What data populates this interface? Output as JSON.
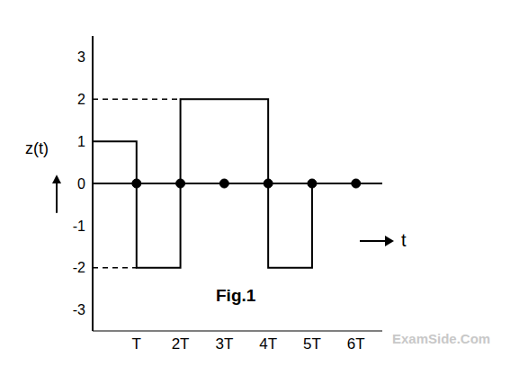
{
  "chart_data": {
    "type": "line",
    "title": "Fig.1",
    "y_label": "z(t)",
    "x_label": "t",
    "line_style": "step",
    "x": [
      0,
      1,
      2,
      4,
      5,
      6.5
    ],
    "values": [
      1,
      -2,
      2,
      -2,
      0,
      0
    ],
    "color": "#000000",
    "xlim": [
      0,
      6.6
    ],
    "ylim": [
      -3.5,
      3.5
    ],
    "xticks": [
      {
        "value": 1,
        "label": "T"
      },
      {
        "value": 2,
        "label": "2T"
      },
      {
        "value": 3,
        "label": "3T"
      },
      {
        "value": 4,
        "label": "4T"
      },
      {
        "value": 5,
        "label": "5T"
      },
      {
        "value": 6,
        "label": "6T"
      }
    ],
    "yticks": [
      -3,
      -2,
      -1,
      0,
      1,
      2,
      3
    ],
    "grid": false,
    "annotations": [
      "ExamSide.Com"
    ]
  }
}
